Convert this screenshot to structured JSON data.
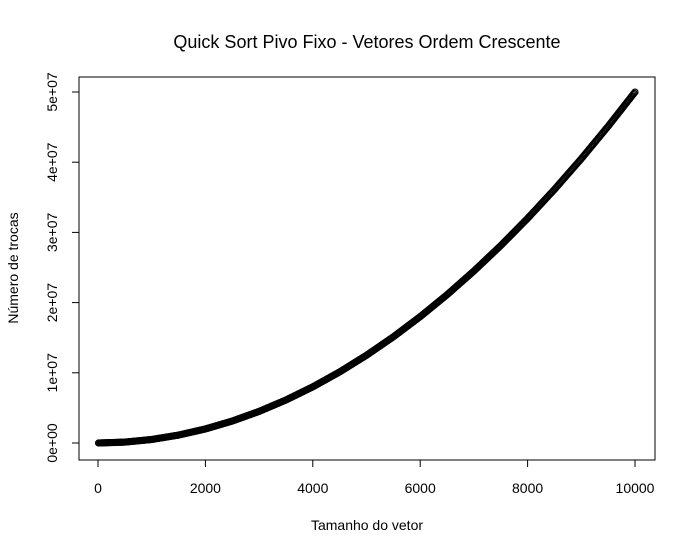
{
  "chart_data": {
    "type": "scatter",
    "title": "Quick Sort Pivo Fixo - Vetores Ordem Crescente",
    "xlabel": "Tamanho do vetor",
    "ylabel": "Número de trocas",
    "xlim": [
      0,
      10000
    ],
    "ylim": [
      0,
      50000000
    ],
    "x_ticks": [
      0,
      2000,
      4000,
      6000,
      8000,
      10000
    ],
    "x_tick_labels": [
      "0",
      "2000",
      "4000",
      "6000",
      "8000",
      "10000"
    ],
    "y_ticks": [
      0,
      10000000,
      20000000,
      30000000,
      40000000,
      50000000
    ],
    "y_tick_labels": [
      "0e+00",
      "1e+07",
      "2e+07",
      "3e+07",
      "4e+07",
      "5e+07"
    ],
    "grid": false,
    "legend": "none",
    "marker": "open-circle",
    "series": [
      {
        "x": [
          10,
          500,
          1000,
          1500,
          2000,
          2500,
          3000,
          3500,
          4000,
          4500,
          5000,
          5500,
          6000,
          6500,
          7000,
          7500,
          8000,
          8500,
          9000,
          9500,
          10000
        ],
        "values": [
          45,
          124750,
          499500,
          1124250,
          1999000,
          3123750,
          4498500,
          6123250,
          7998000,
          10122750,
          12497500,
          15122250,
          17997000,
          21121750,
          24496500,
          28121250,
          31996000,
          36120750,
          40495500,
          45120250,
          49995000
        ]
      }
    ],
    "colors": {
      "marker": "#000000",
      "axis": "#000000",
      "background": "#ffffff"
    }
  }
}
